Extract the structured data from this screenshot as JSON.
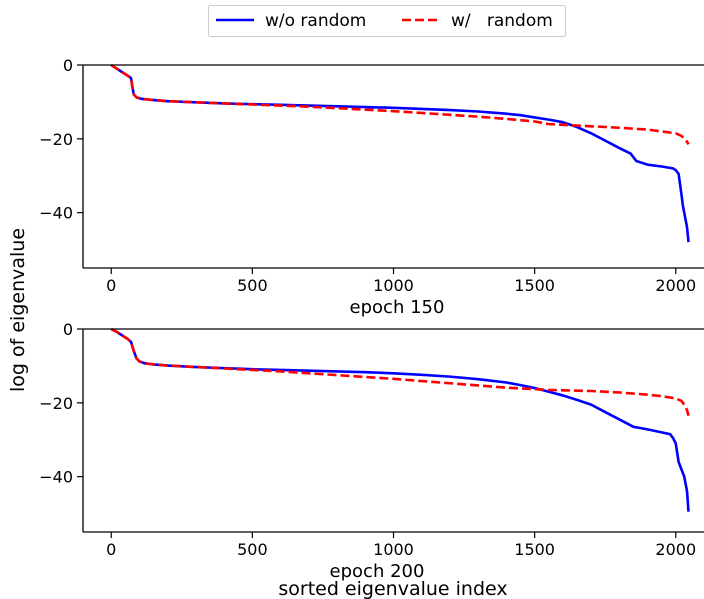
{
  "legend": {
    "placement": "top-center",
    "entries": [
      {
        "label": "w/o random",
        "color": "#0000ff",
        "style": "solid"
      },
      {
        "label": "w/   random",
        "color": "#ff0000",
        "style": "dashed"
      }
    ]
  },
  "ylabel": "log of eigenvalue",
  "xlabel": "sorted eigenvalue index",
  "colors": {
    "solid_series": "#0000ff",
    "dashed_series": "#ff0000",
    "axes": "#000000"
  },
  "chart_data": [
    {
      "type": "line",
      "title": "",
      "panel_label": "epoch 150",
      "xlim": [
        -100,
        2100
      ],
      "ylim": [
        -55,
        0
      ],
      "grid": false,
      "xticks": [
        0,
        500,
        1000,
        1500,
        2000
      ],
      "yticks": [
        0,
        -20,
        -40
      ],
      "series": [
        {
          "name": "w/o random",
          "x": [
            0,
            20,
            40,
            60,
            70,
            75,
            80,
            90,
            110,
            150,
            200,
            300,
            400,
            500,
            600,
            700,
            800,
            900,
            1000,
            1100,
            1200,
            1300,
            1400,
            1450,
            1500,
            1550,
            1600,
            1650,
            1700,
            1750,
            1800,
            1840,
            1860,
            1880,
            1900,
            1950,
            1990,
            2000,
            2010,
            2020,
            2025,
            2030,
            2035,
            2040,
            2045
          ],
          "values": [
            0,
            -1,
            -2,
            -3,
            -3.5,
            -6,
            -8,
            -8.8,
            -9.2,
            -9.5,
            -9.8,
            -10.1,
            -10.4,
            -10.6,
            -10.8,
            -11,
            -11.2,
            -11.4,
            -11.6,
            -11.9,
            -12.2,
            -12.6,
            -13.2,
            -13.6,
            -14.2,
            -14.8,
            -15.5,
            -16.8,
            -18.5,
            -20.5,
            -22.5,
            -24,
            -26,
            -26.5,
            -27,
            -27.5,
            -28,
            -28.5,
            -29.5,
            -35,
            -38,
            -40,
            -42,
            -44,
            -48
          ]
        },
        {
          "name": "w/   random",
          "x": [
            0,
            20,
            40,
            60,
            70,
            75,
            80,
            90,
            110,
            150,
            200,
            300,
            400,
            500,
            600,
            700,
            800,
            900,
            1000,
            1100,
            1200,
            1300,
            1400,
            1500,
            1550,
            1600,
            1650,
            1700,
            1800,
            1900,
            1950,
            2000,
            2020,
            2030,
            2040,
            2045
          ],
          "values": [
            0,
            -1,
            -2,
            -3,
            -3.5,
            -6,
            -8,
            -8.8,
            -9.2,
            -9.5,
            -9.8,
            -10.1,
            -10.4,
            -10.7,
            -11,
            -11.3,
            -11.7,
            -12.1,
            -12.5,
            -13,
            -13.5,
            -14,
            -14.6,
            -15.3,
            -16,
            -16.2,
            -16.4,
            -16.6,
            -17,
            -17.5,
            -18,
            -18.5,
            -19.2,
            -20,
            -20.8,
            -21.5
          ]
        }
      ]
    },
    {
      "type": "line",
      "title": "",
      "panel_label": "epoch 200",
      "xlim": [
        -100,
        2100
      ],
      "ylim": [
        -55,
        0
      ],
      "grid": false,
      "xticks": [
        0,
        500,
        1000,
        1500,
        2000
      ],
      "yticks": [
        0,
        -20,
        -40
      ],
      "series": [
        {
          "name": "w/o random",
          "x": [
            0,
            20,
            40,
            60,
            70,
            80,
            90,
            100,
            120,
            150,
            200,
            300,
            400,
            500,
            600,
            700,
            800,
            900,
            1000,
            1100,
            1200,
            1300,
            1400,
            1450,
            1500,
            1550,
            1600,
            1650,
            1700,
            1750,
            1800,
            1850,
            1900,
            1950,
            1980,
            1990,
            2000,
            2010,
            2020,
            2030,
            2040,
            2045
          ],
          "values": [
            0,
            -0.8,
            -1.8,
            -2.8,
            -3.5,
            -6,
            -8,
            -8.8,
            -9.3,
            -9.6,
            -9.9,
            -10.3,
            -10.6,
            -10.9,
            -11.1,
            -11.3,
            -11.5,
            -11.7,
            -12,
            -12.4,
            -12.9,
            -13.6,
            -14.5,
            -15.2,
            -16,
            -17,
            -18,
            -19.2,
            -20.5,
            -22.5,
            -24.5,
            -26.5,
            -27.2,
            -28,
            -28.5,
            -29.5,
            -31,
            -36,
            -38,
            -40,
            -44,
            -49.5
          ]
        },
        {
          "name": "w/   random",
          "x": [
            0,
            20,
            40,
            60,
            70,
            80,
            90,
            100,
            120,
            150,
            200,
            300,
            400,
            500,
            600,
            700,
            800,
            900,
            1000,
            1100,
            1200,
            1300,
            1400,
            1500,
            1550,
            1600,
            1700,
            1800,
            1900,
            1950,
            2000,
            2020,
            2030,
            2040,
            2045
          ],
          "values": [
            0,
            -0.8,
            -1.8,
            -2.8,
            -3.5,
            -6,
            -8,
            -8.8,
            -9.3,
            -9.6,
            -9.9,
            -10.3,
            -10.7,
            -11.1,
            -11.5,
            -12,
            -12.5,
            -13,
            -13.5,
            -14.1,
            -14.7,
            -15.3,
            -15.9,
            -16.3,
            -16.5,
            -16.6,
            -16.8,
            -17.2,
            -17.8,
            -18.2,
            -18.8,
            -19.5,
            -20.5,
            -22,
            -23.5
          ]
        }
      ]
    }
  ]
}
